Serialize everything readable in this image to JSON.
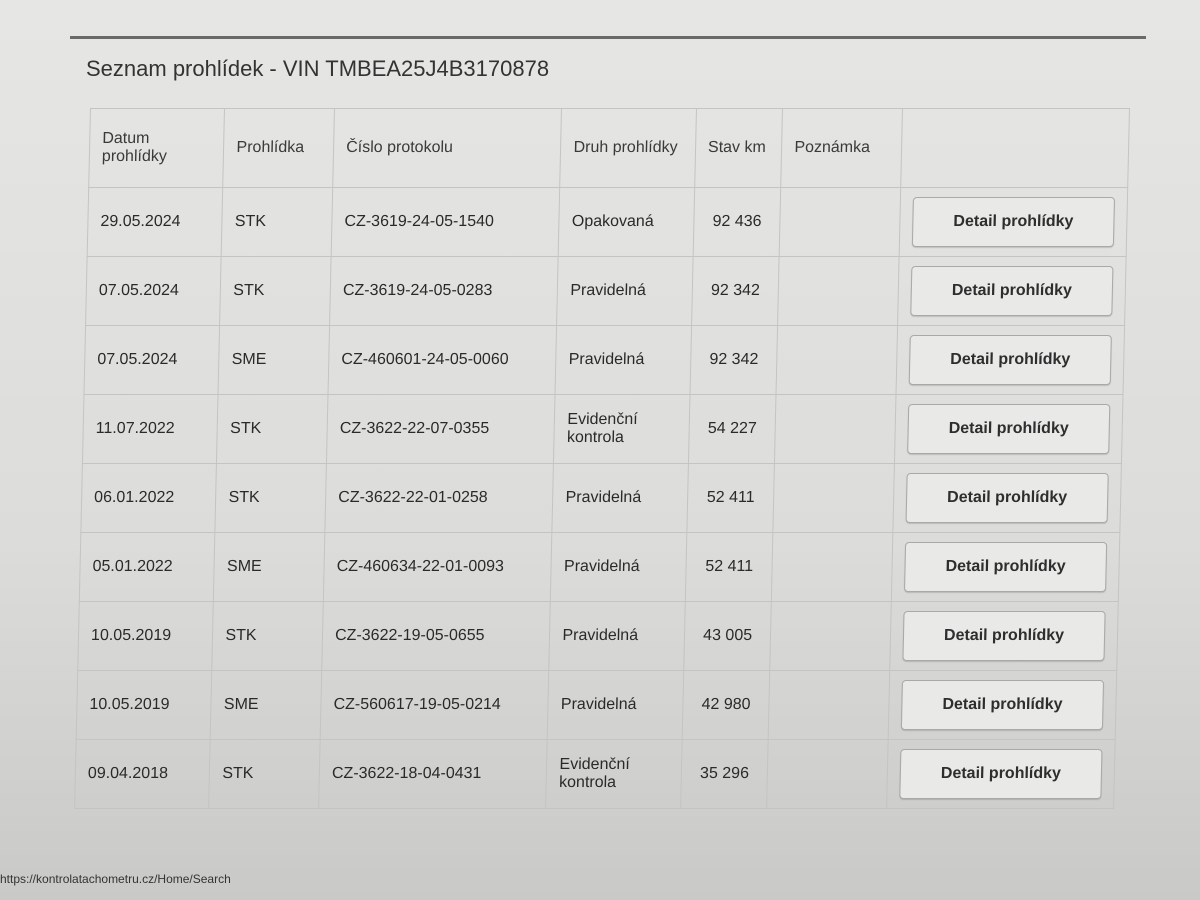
{
  "title": "Seznam prohlídek - VIN TMBEA25J4B3170878",
  "headers": [
    "Datum prohlídky",
    "Prohlídka",
    "Číslo protokolu",
    "Druh prohlídky",
    "Stav km",
    "Poznámka",
    ""
  ],
  "button_label": "Detail prohlídky",
  "rows": [
    {
      "date": "29.05.2024",
      "type": "STK",
      "protocol": "CZ-3619-24-05-1540",
      "kind": "Opakovaná",
      "km": "92 436",
      "note": ""
    },
    {
      "date": "07.05.2024",
      "type": "STK",
      "protocol": "CZ-3619-24-05-0283",
      "kind": "Pravidelná",
      "km": "92 342",
      "note": ""
    },
    {
      "date": "07.05.2024",
      "type": "SME",
      "protocol": "CZ-460601-24-05-0060",
      "kind": "Pravidelná",
      "km": "92 342",
      "note": ""
    },
    {
      "date": "11.07.2022",
      "type": "STK",
      "protocol": "CZ-3622-22-07-0355",
      "kind": "Evidenční kontrola",
      "km": "54 227",
      "note": ""
    },
    {
      "date": "06.01.2022",
      "type": "STK",
      "protocol": "CZ-3622-22-01-0258",
      "kind": "Pravidelná",
      "km": "52 411",
      "note": ""
    },
    {
      "date": "05.01.2022",
      "type": "SME",
      "protocol": "CZ-460634-22-01-0093",
      "kind": "Pravidelná",
      "km": "52 411",
      "note": ""
    },
    {
      "date": "10.05.2019",
      "type": "STK",
      "protocol": "CZ-3622-19-05-0655",
      "kind": "Pravidelná",
      "km": "43 005",
      "note": ""
    },
    {
      "date": "10.05.2019",
      "type": "SME",
      "protocol": "CZ-560617-19-05-0214",
      "kind": "Pravidelná",
      "km": "42 980",
      "note": ""
    },
    {
      "date": "09.04.2018",
      "type": "STK",
      "protocol": "CZ-3622-18-04-0431",
      "kind": "Evidenční kontrola",
      "km": "35 296",
      "note": ""
    }
  ],
  "footer_url": "https://kontrolatachometru.cz/Home/Search"
}
